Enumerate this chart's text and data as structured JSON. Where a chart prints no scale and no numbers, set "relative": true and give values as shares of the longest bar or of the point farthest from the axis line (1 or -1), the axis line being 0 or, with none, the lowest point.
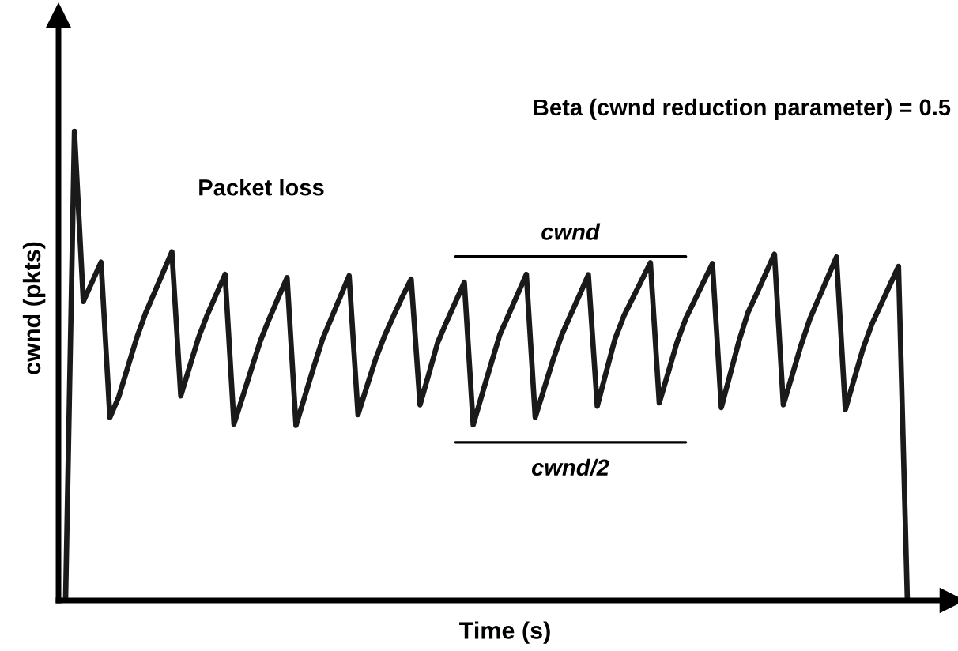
{
  "chart_data": {
    "type": "line",
    "relative": true,
    "title": "Beta (cwnd reduction parameter) = 0.5",
    "xlabel": "Time (s)",
    "ylabel": "cwnd (pkts)",
    "annotations": [
      "Packet loss",
      "cwnd",
      "cwnd/2"
    ],
    "categories": [
      null,
      null,
      null,
      null,
      null,
      null,
      null,
      null,
      null,
      null,
      null,
      null,
      null,
      null,
      null,
      null,
      null,
      null,
      null,
      null,
      null,
      null,
      null,
      null,
      null,
      null,
      null,
      null,
      null,
      null,
      null,
      null,
      null,
      null,
      null,
      null,
      null,
      null,
      null,
      null,
      null,
      null,
      null,
      null,
      null,
      null,
      null,
      null,
      null,
      null,
      null,
      null,
      null,
      null,
      null,
      null,
      null,
      null,
      null,
      null,
      null,
      null,
      null,
      null,
      null,
      null,
      null,
      null,
      null,
      null,
      null,
      null,
      null,
      null,
      null,
      null,
      null,
      null,
      null,
      null,
      null,
      null,
      null,
      null,
      null,
      null,
      null,
      null,
      null,
      null,
      null,
      null,
      null,
      null,
      null,
      null
    ],
    "series": [
      {
        "color": "#1a1a1a",
        "values": [
          0,
          1.0,
          0.637,
          0.679,
          0.721,
          0.39,
          0.434,
          0.496,
          0.558,
          0.611,
          0.655,
          0.699,
          0.743,
          0.436,
          0.498,
          0.56,
          0.609,
          0.652,
          0.695,
          0.376,
          0.435,
          0.495,
          0.554,
          0.601,
          0.645,
          0.688,
          0.373,
          0.435,
          0.497,
          0.557,
          0.602,
          0.647,
          0.692,
          0.396,
          0.456,
          0.515,
          0.564,
          0.606,
          0.647,
          0.685,
          0.417,
          0.483,
          0.55,
          0.594,
          0.636,
          0.678,
          0.374,
          0.439,
          0.503,
          0.566,
          0.609,
          0.652,
          0.695,
          0.39,
          0.451,
          0.512,
          0.566,
          0.609,
          0.651,
          0.694,
          0.414,
          0.486,
          0.557,
          0.606,
          0.644,
          0.682,
          0.72,
          0.421,
          0.485,
          0.55,
          0.601,
          0.64,
          0.679,
          0.718,
          0.411,
          0.482,
          0.553,
          0.613,
          0.654,
          0.696,
          0.738,
          0.417,
          0.48,
          0.544,
          0.6,
          0.644,
          0.688,
          0.732,
          0.407,
          0.472,
          0.537,
          0.589,
          0.63,
          0.671,
          0.712,
          0
        ]
      },
      {
        "type": "line",
        "color": "#000000",
        "values": [
          null,
          null,
          null,
          null,
          null,
          null,
          null,
          null,
          null,
          null,
          null,
          null,
          null,
          null,
          null,
          null,
          null,
          null,
          null,
          null,
          null,
          null,
          null,
          null,
          null,
          null,
          null,
          null,
          null,
          null,
          null,
          null,
          null,
          null,
          null,
          null,
          null,
          null,
          null,
          null,
          null,
          null,
          null,
          null,
          0.733,
          0.733,
          0.733,
          0.733,
          0.733,
          0.733,
          0.733,
          0.733,
          0.733,
          0.733,
          0.733,
          0.733,
          0.733,
          0.733,
          0.733,
          0.733,
          0.733,
          0.733,
          0.733,
          0.733,
          0.733,
          0.733,
          0.733,
          0.733,
          0.733,
          0.733,
          0.733,
          null,
          null,
          null,
          null,
          null,
          null,
          null,
          null,
          null,
          null,
          null,
          null,
          null,
          null,
          null,
          null,
          null,
          null,
          null,
          null,
          null,
          null,
          null,
          null,
          null
        ]
      },
      {
        "type": "line",
        "color": "#000000",
        "values": [
          null,
          null,
          null,
          null,
          null,
          null,
          null,
          null,
          null,
          null,
          null,
          null,
          null,
          null,
          null,
          null,
          null,
          null,
          null,
          null,
          null,
          null,
          null,
          null,
          null,
          null,
          null,
          null,
          null,
          null,
          null,
          null,
          null,
          null,
          null,
          null,
          null,
          null,
          null,
          null,
          null,
          null,
          null,
          null,
          0.337,
          0.337,
          0.337,
          0.337,
          0.337,
          0.337,
          0.337,
          0.337,
          0.337,
          0.337,
          0.337,
          0.337,
          0.337,
          0.337,
          0.337,
          0.337,
          0.337,
          0.337,
          0.337,
          0.337,
          0.337,
          0.337,
          0.337,
          0.337,
          0.337,
          0.337,
          0.337,
          null,
          null,
          null,
          null,
          null,
          null,
          null,
          null,
          null,
          null,
          null,
          null,
          null,
          null,
          null,
          null,
          null,
          null,
          null,
          null,
          null,
          null,
          null,
          null,
          null
        ]
      }
    ]
  }
}
